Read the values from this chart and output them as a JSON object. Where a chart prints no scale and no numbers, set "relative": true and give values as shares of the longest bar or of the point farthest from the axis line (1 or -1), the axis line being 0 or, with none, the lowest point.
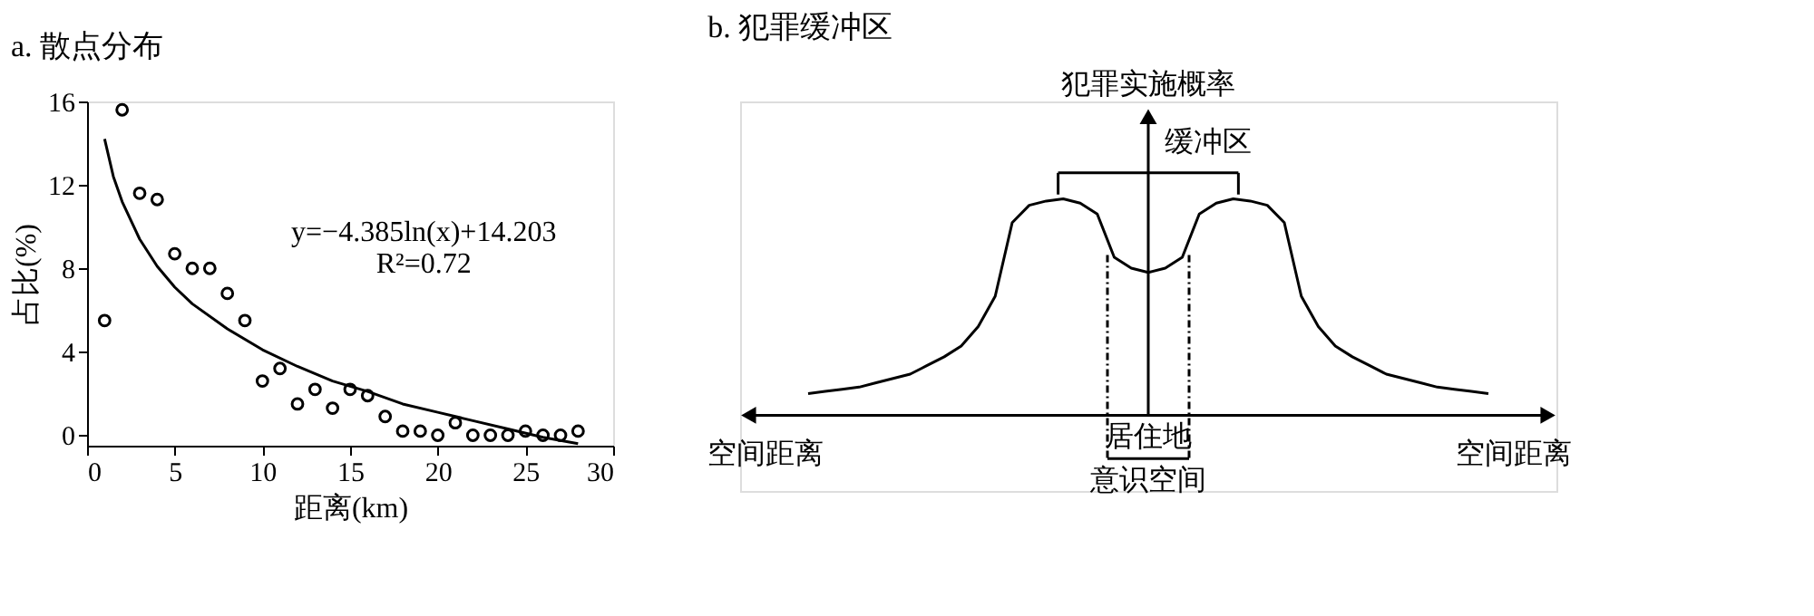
{
  "chart_data": [
    {
      "type": "scatter",
      "title": "a. 散点分布",
      "xlabel": "距离(km)",
      "ylabel": "占比(%)",
      "xlim": [
        0,
        30
      ],
      "ylim": [
        -0.5,
        16
      ],
      "xticks": [
        0,
        5,
        10,
        15,
        20,
        25,
        30
      ],
      "yticks": [
        0,
        4,
        8,
        12,
        16
      ],
      "grid": false,
      "series": [
        {
          "type": "scatter",
          "marker": "circle",
          "color": "#000000",
          "x": [
            1,
            2,
            3,
            4,
            5,
            6,
            7,
            8,
            9,
            10,
            11,
            12,
            13,
            14,
            15,
            16,
            17,
            18,
            19,
            20,
            21,
            22,
            23,
            24,
            25,
            26,
            27,
            28
          ],
          "values": [
            5.5,
            15.6,
            11.6,
            11.3,
            8.7,
            8.0,
            8.0,
            6.8,
            5.5,
            2.6,
            3.2,
            1.5,
            2.2,
            1.3,
            2.2,
            1.9,
            0.9,
            0.2,
            0.2,
            0,
            0.6,
            0,
            0,
            0,
            0.2,
            0,
            0,
            0.2
          ]
        },
        {
          "type": "line",
          "color": "#000000",
          "x": [
            1,
            1.5,
            2,
            3,
            4,
            5,
            6,
            8,
            10,
            12,
            14,
            16,
            18,
            20,
            22,
            24,
            26,
            28
          ],
          "values": [
            14.2,
            12.4,
            11.2,
            9.4,
            8.1,
            7.1,
            6.3,
            5.1,
            4.1,
            3.3,
            2.6,
            2.1,
            1.5,
            1.1,
            0.7,
            0.3,
            -0.1,
            -0.4
          ]
        }
      ],
      "annotations": [
        "y=−4.385ln(x)+14.203",
        "R²=0.72"
      ]
    },
    {
      "type": "line",
      "title": "b. 犯罪缓冲区",
      "ylabel": "犯罪实施概率",
      "relative": true,
      "categories": [
        null,
        null,
        null,
        null,
        null,
        null,
        null,
        null,
        null,
        null,
        null,
        null,
        null,
        null,
        null,
        null,
        null,
        null,
        null,
        null,
        null,
        null,
        null,
        null,
        null,
        null,
        null,
        null,
        null,
        null,
        null,
        null,
        null,
        null,
        null,
        null,
        null,
        null,
        null,
        null,
        null
      ],
      "series": [
        {
          "color": "#000000",
          "values": [
            0.1,
            0.11,
            0.12,
            0.13,
            0.15,
            0.17,
            0.19,
            0.23,
            0.27,
            0.32,
            0.41,
            0.55,
            0.89,
            0.97,
            0.99,
            1.0,
            0.98,
            0.93,
            0.73,
            0.68,
            0.66,
            0.68,
            0.73,
            0.93,
            0.98,
            1.0,
            0.99,
            0.97,
            0.89,
            0.55,
            0.41,
            0.32,
            0.27,
            0.23,
            0.19,
            0.17,
            0.15,
            0.13,
            0.12,
            0.11,
            0.1
          ]
        }
      ],
      "annotations": [
        "缓冲区",
        "居住地",
        "意识空间",
        "空间距离",
        "空间距离"
      ]
    }
  ]
}
